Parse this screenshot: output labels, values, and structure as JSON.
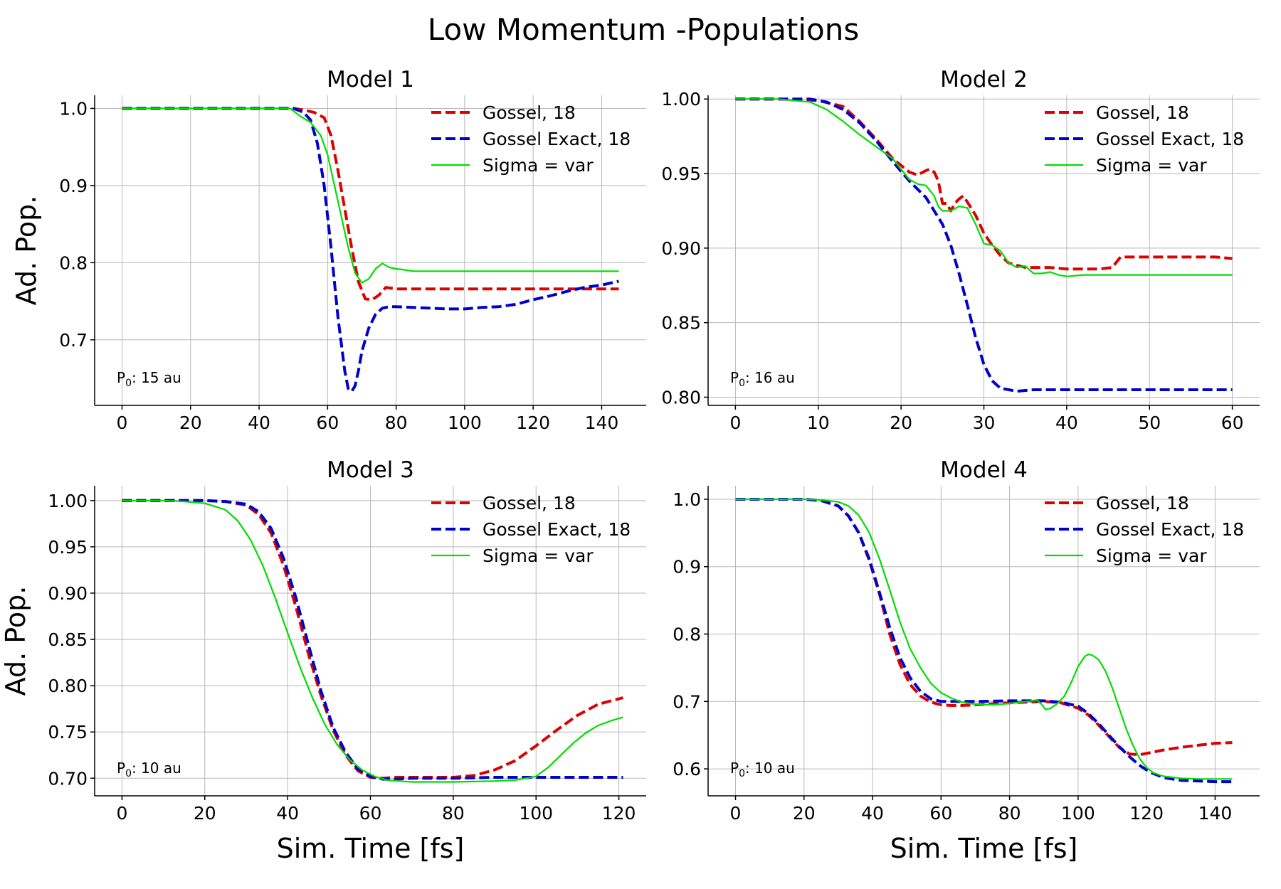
{
  "figure": {
    "title": "Low Momentum -Populations"
  },
  "legend_entries": [
    {
      "label": "Gossel, 18",
      "color": "#dd0000",
      "dashed": true
    },
    {
      "label": "Gossel Exact, 18",
      "color": "#0000cc",
      "dashed": true
    },
    {
      "label": "Sigma = var",
      "color": "#00dd00",
      "dashed": false
    }
  ],
  "chart_data": [
    {
      "type": "line",
      "title": "Model 1",
      "xlabel": "",
      "ylabel": "Ad. Pop.",
      "annotation": {
        "base": "P",
        "sub": "0",
        "rest": ": 15 au"
      },
      "xlim": [
        -8,
        153
      ],
      "ylim": [
        0.615,
        1.017
      ],
      "xticks": [
        0,
        20,
        40,
        60,
        80,
        100,
        120,
        140
      ],
      "yticks": [
        0.7,
        0.8,
        0.9,
        1.0
      ],
      "ytick_labels": [
        "0.7",
        "0.8",
        "0.9",
        "1.0"
      ],
      "grid": true,
      "legend": "upper right",
      "series": [
        {
          "name": "Gossel, 18",
          "color": "#dd0000",
          "dashed": true,
          "x": [
            0,
            10,
            20,
            30,
            40,
            50,
            53,
            56,
            59,
            61,
            63,
            65,
            67,
            69,
            71,
            73,
            75,
            77,
            80,
            85,
            90,
            100,
            110,
            120,
            130,
            140,
            145
          ],
          "y": [
            1.0,
            1.0,
            1.0,
            1.0,
            1.0,
            1.0,
            0.998,
            0.995,
            0.988,
            0.965,
            0.92,
            0.87,
            0.82,
            0.775,
            0.753,
            0.752,
            0.758,
            0.768,
            0.766,
            0.766,
            0.766,
            0.766,
            0.766,
            0.766,
            0.766,
            0.766,
            0.766
          ]
        },
        {
          "name": "Gossel Exact, 18",
          "color": "#0000cc",
          "dashed": true,
          "x": [
            0,
            10,
            20,
            30,
            40,
            50,
            53,
            55,
            57,
            59,
            61,
            63,
            65,
            66,
            67,
            68,
            69,
            70,
            72,
            74,
            76,
            78,
            80,
            85,
            90,
            95,
            100,
            105,
            110,
            115,
            120,
            125,
            130,
            135,
            140,
            145
          ],
          "y": [
            1.0,
            1.0,
            1.0,
            1.0,
            1.0,
            1.0,
            0.995,
            0.985,
            0.955,
            0.9,
            0.82,
            0.73,
            0.66,
            0.637,
            0.633,
            0.64,
            0.66,
            0.685,
            0.715,
            0.733,
            0.741,
            0.743,
            0.743,
            0.742,
            0.741,
            0.74,
            0.74,
            0.742,
            0.743,
            0.746,
            0.752,
            0.757,
            0.763,
            0.768,
            0.771,
            0.776
          ]
        },
        {
          "name": "Sigma = var",
          "color": "#00dd00",
          "dashed": false,
          "x": [
            0,
            10,
            20,
            30,
            40,
            49,
            52,
            55,
            58,
            60,
            62,
            64,
            66,
            68,
            70,
            72,
            74,
            76,
            78,
            80,
            82,
            85,
            90,
            100,
            110,
            120,
            130,
            140,
            145
          ],
          "y": [
            1.0,
            1.0,
            1.0,
            1.0,
            1.0,
            1.0,
            0.99,
            0.982,
            0.965,
            0.94,
            0.9,
            0.86,
            0.82,
            0.787,
            0.774,
            0.779,
            0.792,
            0.799,
            0.794,
            0.792,
            0.791,
            0.789,
            0.789,
            0.789,
            0.789,
            0.789,
            0.789,
            0.789,
            0.789
          ]
        }
      ]
    },
    {
      "type": "line",
      "title": "Model 2",
      "xlabel": "",
      "ylabel": "",
      "annotation": {
        "base": "P",
        "sub": "0",
        "rest": ": 16 au"
      },
      "xlim": [
        -3.3,
        63.3
      ],
      "ylim": [
        0.7945,
        1.0025
      ],
      "xticks": [
        0,
        10,
        20,
        30,
        40,
        50,
        60
      ],
      "yticks": [
        0.8,
        0.85,
        0.9,
        0.95,
        1.0
      ],
      "ytick_labels": [
        "0.80",
        "0.85",
        "0.90",
        "0.95",
        "1.00"
      ],
      "grid": true,
      "legend": "upper right",
      "series": [
        {
          "name": "Gossel, 18",
          "color": "#dd0000",
          "dashed": true,
          "x": [
            0,
            5,
            10,
            13,
            15,
            17,
            19,
            21,
            22,
            23,
            23.5,
            24,
            24.5,
            25,
            25.5,
            26,
            26.5,
            27,
            27.5,
            28,
            29,
            30,
            31,
            32,
            33,
            35,
            38,
            40,
            42,
            44,
            45.5,
            46.5,
            48,
            52,
            55,
            58,
            60
          ],
          "y": [
            1.0,
            1.0,
            0.999,
            0.995,
            0.985,
            0.973,
            0.96,
            0.951,
            0.949,
            0.952,
            0.953,
            0.951,
            0.945,
            0.93,
            0.93,
            0.925,
            0.93,
            0.933,
            0.935,
            0.931,
            0.922,
            0.91,
            0.902,
            0.895,
            0.89,
            0.887,
            0.887,
            0.886,
            0.886,
            0.886,
            0.887,
            0.894,
            0.894,
            0.894,
            0.894,
            0.894,
            0.893
          ]
        },
        {
          "name": "Gossel Exact, 18",
          "color": "#0000cc",
          "dashed": true,
          "x": [
            0,
            5,
            9,
            11,
            13,
            15,
            17,
            19,
            21,
            23,
            25,
            26,
            27,
            28,
            29,
            30,
            31,
            32,
            33,
            34,
            36,
            40,
            45,
            50,
            55,
            60
          ],
          "y": [
            1.0,
            1.0,
            1.0,
            0.998,
            0.993,
            0.984,
            0.972,
            0.958,
            0.945,
            0.934,
            0.916,
            0.902,
            0.883,
            0.862,
            0.84,
            0.822,
            0.811,
            0.806,
            0.805,
            0.804,
            0.805,
            0.805,
            0.805,
            0.805,
            0.805,
            0.805
          ]
        },
        {
          "name": "Sigma = var",
          "color": "#00dd00",
          "dashed": false,
          "x": [
            0,
            5,
            9,
            11,
            13,
            15,
            17,
            19,
            20,
            21,
            22,
            23,
            24,
            24.5,
            25,
            26,
            27,
            28,
            29,
            30,
            31,
            32,
            33,
            34,
            35,
            36,
            37,
            38,
            39,
            40,
            42,
            45,
            50,
            55,
            60
          ],
          "y": [
            1.0,
            1.0,
            0.998,
            0.993,
            0.985,
            0.976,
            0.968,
            0.96,
            0.953,
            0.946,
            0.943,
            0.942,
            0.935,
            0.928,
            0.925,
            0.925,
            0.928,
            0.927,
            0.916,
            0.903,
            0.902,
            0.898,
            0.89,
            0.887,
            0.888,
            0.883,
            0.883,
            0.884,
            0.882,
            0.881,
            0.882,
            0.882,
            0.882,
            0.882,
            0.882
          ]
        }
      ]
    },
    {
      "type": "line",
      "title": "Model 3",
      "xlabel": "Sim. Time [fs]",
      "ylabel": "Ad. Pop.",
      "annotation": {
        "base": "P",
        "sub": "0",
        "rest": ": 10 au"
      },
      "xlim": [
        -6.6,
        126.6
      ],
      "ylim": [
        0.681,
        1.016
      ],
      "xticks": [
        0,
        20,
        40,
        60,
        80,
        100,
        120
      ],
      "yticks": [
        0.7,
        0.75,
        0.8,
        0.85,
        0.9,
        0.95,
        1.0
      ],
      "ytick_labels": [
        "0.70",
        "0.75",
        "0.80",
        "0.85",
        "0.90",
        "0.95",
        "1.00"
      ],
      "grid": true,
      "legend": "upper right",
      "series": [
        {
          "name": "Gossel, 18",
          "color": "#dd0000",
          "dashed": true,
          "x": [
            0,
            10,
            20,
            25,
            30,
            33,
            36,
            39,
            42,
            45,
            48,
            51,
            54,
            57,
            60,
            63,
            66,
            70,
            80,
            85,
            90,
            95,
            100,
            105,
            110,
            115,
            121
          ],
          "y": [
            1.0,
            1.0,
            1.0,
            0.999,
            0.995,
            0.985,
            0.965,
            0.93,
            0.885,
            0.835,
            0.79,
            0.752,
            0.725,
            0.708,
            0.701,
            0.7,
            0.701,
            0.701,
            0.701,
            0.703,
            0.709,
            0.719,
            0.735,
            0.752,
            0.768,
            0.78,
            0.787
          ]
        },
        {
          "name": "Gossel Exact, 18",
          "color": "#0000cc",
          "dashed": true,
          "x": [
            0,
            10,
            20,
            25,
            30,
            33,
            36,
            39,
            42,
            45,
            48,
            51,
            54,
            57,
            60,
            63,
            66,
            70,
            80,
            90,
            100,
            110,
            121
          ],
          "y": [
            1.0,
            1.0,
            1.0,
            0.999,
            0.996,
            0.988,
            0.97,
            0.938,
            0.895,
            0.845,
            0.795,
            0.755,
            0.728,
            0.71,
            0.702,
            0.699,
            0.699,
            0.7,
            0.7,
            0.701,
            0.701,
            0.701,
            0.701
          ]
        },
        {
          "name": "Sigma = var",
          "color": "#00dd00",
          "dashed": false,
          "x": [
            0,
            10,
            15,
            20,
            25,
            28,
            31,
            34,
            37,
            40,
            43,
            46,
            49,
            52,
            55,
            58,
            61,
            64,
            67,
            70,
            80,
            90,
            95,
            100,
            103,
            106,
            109,
            112,
            115,
            118,
            121
          ],
          "y": [
            1.0,
            1.0,
            0.999,
            0.997,
            0.99,
            0.978,
            0.958,
            0.93,
            0.895,
            0.857,
            0.82,
            0.787,
            0.758,
            0.736,
            0.72,
            0.709,
            0.702,
            0.698,
            0.697,
            0.696,
            0.696,
            0.697,
            0.698,
            0.702,
            0.712,
            0.725,
            0.738,
            0.749,
            0.757,
            0.762,
            0.766
          ]
        }
      ]
    },
    {
      "type": "line",
      "title": "Model 4",
      "xlabel": "Sim. Time [fs]",
      "ylabel": "",
      "annotation": {
        "base": "P",
        "sub": "0",
        "rest": ": 10 au"
      },
      "xlim": [
        -8,
        153
      ],
      "ylim": [
        0.56,
        1.02
      ],
      "xticks": [
        0,
        20,
        40,
        60,
        80,
        100,
        120,
        140
      ],
      "yticks": [
        0.6,
        0.7,
        0.8,
        0.9,
        1.0
      ],
      "ytick_labels": [
        "0.6",
        "0.7",
        "0.8",
        "0.9",
        "1.0"
      ],
      "grid": true,
      "legend": "upper right",
      "series": [
        {
          "name": "Gossel, 18",
          "color": "#dd0000",
          "dashed": true,
          "x": [
            0,
            10,
            20,
            25,
            30,
            33,
            36,
            39,
            42,
            45,
            48,
            51,
            54,
            57,
            60,
            63,
            66,
            70,
            80,
            90,
            95,
            100,
            103,
            106,
            109,
            112,
            115,
            118,
            121,
            125,
            130,
            135,
            140,
            145
          ],
          "y": [
            1.0,
            1.0,
            1.0,
            0.998,
            0.99,
            0.975,
            0.95,
            0.91,
            0.86,
            0.8,
            0.755,
            0.725,
            0.708,
            0.699,
            0.695,
            0.694,
            0.694,
            0.695,
            0.698,
            0.7,
            0.698,
            0.69,
            0.68,
            0.665,
            0.648,
            0.632,
            0.622,
            0.621,
            0.624,
            0.628,
            0.632,
            0.635,
            0.638,
            0.639
          ]
        },
        {
          "name": "Gossel Exact, 18",
          "color": "#0000cc",
          "dashed": true,
          "x": [
            0,
            10,
            20,
            25,
            30,
            33,
            36,
            39,
            42,
            45,
            48,
            51,
            54,
            57,
            60,
            63,
            66,
            70,
            80,
            90,
            95,
            100,
            103,
            106,
            109,
            112,
            115,
            118,
            121,
            125,
            130,
            135,
            140,
            145
          ],
          "y": [
            1.0,
            1.0,
            1.0,
            0.998,
            0.99,
            0.975,
            0.95,
            0.912,
            0.862,
            0.81,
            0.765,
            0.735,
            0.715,
            0.704,
            0.7,
            0.7,
            0.7,
            0.7,
            0.701,
            0.701,
            0.699,
            0.693,
            0.682,
            0.667,
            0.65,
            0.633,
            0.618,
            0.605,
            0.595,
            0.587,
            0.583,
            0.582,
            0.581,
            0.581
          ]
        },
        {
          "name": "Sigma = var",
          "color": "#00dd00",
          "dashed": false,
          "x": [
            0,
            10,
            20,
            25,
            30,
            33,
            36,
            39,
            42,
            45,
            48,
            51,
            54,
            57,
            60,
            63,
            66,
            70,
            75,
            80,
            85,
            88,
            89.5,
            90.5,
            92,
            94,
            96,
            98,
            100,
            102,
            103,
            104,
            106,
            108,
            110,
            112,
            114,
            116,
            118,
            120,
            122,
            125,
            130,
            135,
            140,
            145
          ],
          "y": [
            1.0,
            1.0,
            1.0,
            0.999,
            0.996,
            0.99,
            0.976,
            0.951,
            0.912,
            0.866,
            0.818,
            0.778,
            0.75,
            0.727,
            0.713,
            0.705,
            0.699,
            0.696,
            0.695,
            0.697,
            0.7,
            0.702,
            0.695,
            0.688,
            0.69,
            0.697,
            0.708,
            0.728,
            0.752,
            0.767,
            0.77,
            0.769,
            0.762,
            0.745,
            0.72,
            0.69,
            0.66,
            0.635,
            0.615,
            0.602,
            0.594,
            0.589,
            0.586,
            0.585,
            0.585,
            0.585
          ]
        }
      ]
    }
  ]
}
